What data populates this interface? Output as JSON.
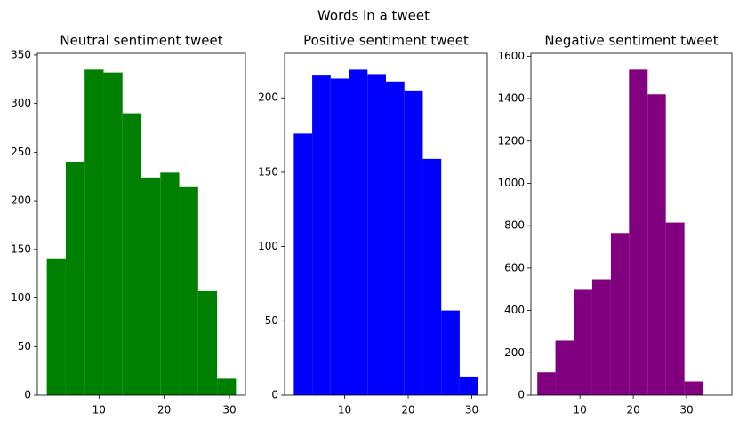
{
  "title": "Words in a tweet",
  "chart_data": [
    {
      "type": "histogram",
      "title": "Neutral sentiment tweet",
      "color": "#008000",
      "bins": [
        2,
        4.9,
        7.8,
        10.7,
        13.6,
        16.5,
        19.4,
        22.3,
        25.2,
        28.1,
        31
      ],
      "values": [
        140,
        240,
        335,
        332,
        290,
        224,
        229,
        214,
        107,
        17
      ],
      "xlim": [
        0.55,
        32.45
      ],
      "xticks": [
        10,
        20,
        30
      ],
      "ylim": [
        0,
        351.75
      ],
      "yticks": [
        0,
        50,
        100,
        150,
        200,
        250,
        300,
        350
      ]
    },
    {
      "type": "histogram",
      "title": "Positive sentiment tweet",
      "color": "#0000ff",
      "bins": [
        2,
        4.9,
        7.8,
        10.7,
        13.6,
        16.5,
        19.4,
        22.3,
        25.2,
        28.1,
        31
      ],
      "values": [
        176,
        215,
        213,
        219,
        216,
        211,
        205,
        159,
        57,
        12
      ],
      "xlim": [
        0.55,
        32.45
      ],
      "xticks": [
        10,
        20,
        30
      ],
      "ylim": [
        0,
        230
      ],
      "yticks": [
        0,
        50,
        100,
        150,
        200
      ]
    },
    {
      "type": "histogram",
      "title": "Negative sentiment tweet",
      "color": "#800080",
      "bins": [
        2,
        5.4,
        8.9,
        12.3,
        15.8,
        19.2,
        22.7,
        26.1,
        29.6,
        33
      ],
      "values": [
        108,
        258,
        497,
        547,
        766,
        1537,
        1420,
        815,
        65
      ],
      "xlim": [
        0.8,
        38.5
      ],
      "xticks": [
        10,
        20,
        30
      ],
      "ylim": [
        0,
        1614
      ],
      "yticks": [
        0,
        200,
        400,
        600,
        800,
        1000,
        1200,
        1400,
        1600
      ]
    }
  ]
}
